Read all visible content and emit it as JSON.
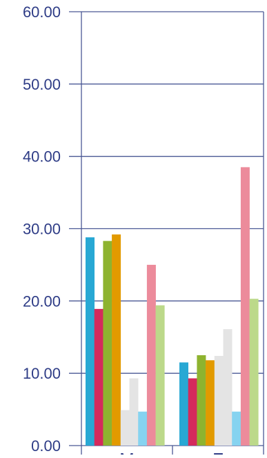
{
  "chart_data": {
    "type": "bar",
    "categories": [
      "M",
      "F"
    ],
    "series": [
      {
        "color": "#28a8d4",
        "values": [
          28.8,
          11.5
        ]
      },
      {
        "color": "#d42a5c",
        "values": [
          18.9,
          9.3
        ]
      },
      {
        "color": "#8eb32f",
        "values": [
          28.3,
          12.5
        ]
      },
      {
        "color": "#e29a00",
        "values": [
          29.2,
          11.8
        ]
      },
      {
        "color": "#e4e4e4",
        "values": [
          4.9,
          12.4
        ]
      },
      {
        "color": "#e4e4e4",
        "values": [
          9.3,
          16.1
        ]
      },
      {
        "color": "#86d3f0",
        "values": [
          4.7,
          4.7
        ]
      },
      {
        "color": "#ec8b9b",
        "values": [
          25.0,
          38.5
        ]
      },
      {
        "color": "#bcd98a",
        "values": [
          19.4,
          20.3
        ]
      }
    ],
    "ylim": [
      0,
      60
    ],
    "yticks": [
      "0.00",
      "10.00",
      "20.00",
      "30.00",
      "40.00",
      "50.00",
      "60.00"
    ],
    "grid": true,
    "colors": {
      "axis": "#4a5894",
      "tick_text": "#2e3c86"
    }
  }
}
